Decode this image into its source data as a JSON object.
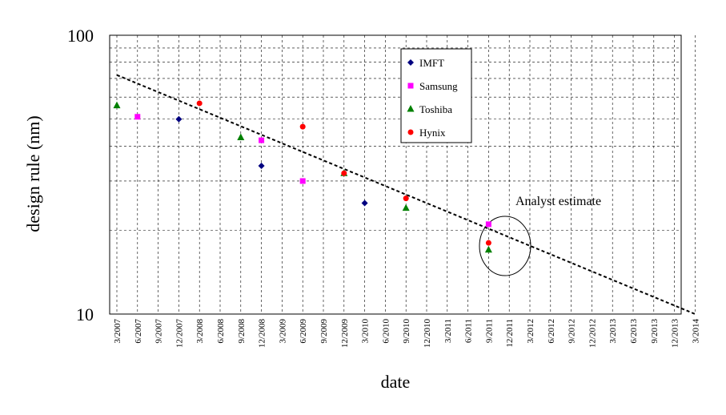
{
  "chart_data": {
    "type": "scatter",
    "title": "",
    "xlabel": "date",
    "ylabel": "design rule (nm)",
    "yscale": "log",
    "ylim": [
      10,
      100
    ],
    "y_tick_labels": [
      "100",
      "10"
    ],
    "x_ticks": [
      "3/2007",
      "6/2007",
      "9/2007",
      "12/2007",
      "3/2008",
      "6/2008",
      "9/2008",
      "12/2008",
      "3/2009",
      "6/2009",
      "9/2009",
      "12/2009",
      "3/2010",
      "6/2010",
      "9/2010",
      "12/2010",
      "3/2011",
      "6/2011",
      "9/2011",
      "12/2011",
      "3/2012",
      "6/2012",
      "9/2012",
      "12/2012",
      "3/2013",
      "6/2013",
      "9/2013",
      "12/2013",
      "3/2014"
    ],
    "grid": true,
    "legend_position": "top-center",
    "series": [
      {
        "name": "IMFT",
        "marker": "diamond",
        "color": "#000080",
        "points": [
          {
            "x": "12/2007",
            "y": 50
          },
          {
            "x": "12/2008",
            "y": 34
          },
          {
            "x": "3/2010",
            "y": 25
          }
        ]
      },
      {
        "name": "Samsung",
        "marker": "square",
        "color": "#ff00ff",
        "points": [
          {
            "x": "6/2007",
            "y": 51
          },
          {
            "x": "12/2008",
            "y": 42
          },
          {
            "x": "6/2009",
            "y": 30
          },
          {
            "x": "9/2011",
            "y": 21
          }
        ]
      },
      {
        "name": "Toshiba",
        "marker": "triangle",
        "color": "#008000",
        "points": [
          {
            "x": "3/2007",
            "y": 56
          },
          {
            "x": "9/2008",
            "y": 43
          },
          {
            "x": "12/2009",
            "y": 32
          },
          {
            "x": "9/2010",
            "y": 24
          },
          {
            "x": "9/2011",
            "y": 17
          }
        ]
      },
      {
        "name": "Hynix",
        "marker": "circle",
        "color": "#ff0000",
        "points": [
          {
            "x": "3/2008",
            "y": 57
          },
          {
            "x": "6/2009",
            "y": 47
          },
          {
            "x": "12/2009",
            "y": 32
          },
          {
            "x": "9/2010",
            "y": 26
          },
          {
            "x": "9/2011",
            "y": 18
          }
        ]
      }
    ],
    "trendline": {
      "style": "dashed",
      "color": "#000000",
      "from": {
        "x": "3/2007",
        "y": 72
      },
      "to": {
        "x": "3/2014",
        "y": 10
      }
    },
    "annotation": {
      "text": "Analyst estimate",
      "circled_date": "9/2011"
    }
  }
}
